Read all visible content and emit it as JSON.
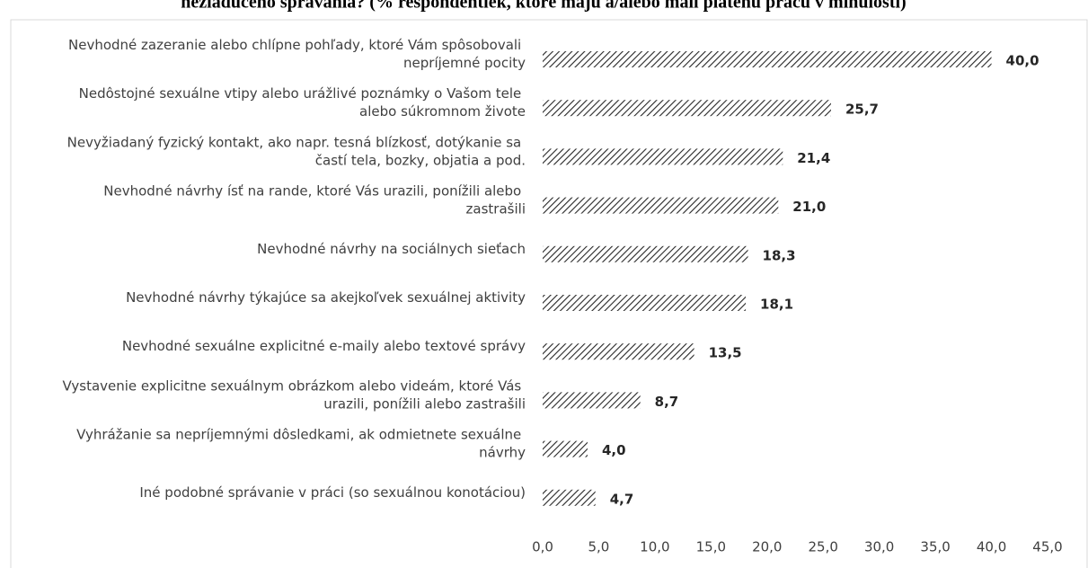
{
  "chart_data": {
    "type": "hbar",
    "title": "nežiaduceho správania? (% respondentiek, ktoré majú a/alebo mali platenú prácu v minulosti)",
    "categories": [
      "Nevhodné zazeranie alebo chlípne pohľady, ktoré Vám spôsobovali nepríjemné pocity",
      "Nedôstojné sexuálne vtipy alebo urážlivé poznámky o Vašom tele alebo súkromnom živote",
      "Nevyžiadaný fyzický kontakt, ako napr. tesná blízkosť, dotýkanie sa častí tela, bozky, objatia a pod.",
      "Nevhodné návrhy ísť na rande, ktoré Vás urazili, ponížili alebo zastrašili",
      "Nevhodné návrhy na sociálnych sieťach",
      "Nevhodné návrhy týkajúce sa akejkoľvek sexuálnej aktivity",
      "Nevhodné sexuálne explicitné e-maily alebo textové správy",
      "Vystavenie explicitne sexuálnym obrázkom alebo videám, ktoré Vás urazili, ponížili alebo zastrašili",
      "Vyhrážanie sa nepríjemnými dôsledkami, ak odmietnete sexuálne návrhy",
      "Iné podobné správanie v práci (so sexuálnou konotáciou)"
    ],
    "values": [
      40.0,
      25.7,
      21.4,
      21.0,
      18.3,
      18.1,
      13.5,
      8.7,
      4.0,
      4.7
    ],
    "value_labels": [
      "40,0",
      "25,7",
      "21,4",
      "21,0",
      "18,3",
      "18,1",
      "13,5",
      "8,7",
      "4,0",
      "4,7"
    ],
    "color": "#262626",
    "pattern": "diagonal-hatch",
    "xlim": [
      0,
      45
    ],
    "xticks": [
      {
        "value": 0,
        "label": "0,0"
      },
      {
        "value": 5,
        "label": "5,0"
      },
      {
        "value": 10,
        "label": "10,0"
      },
      {
        "value": 15,
        "label": "15,0"
      },
      {
        "value": 20,
        "label": "20,0"
      },
      {
        "value": 25,
        "label": "25,0"
      },
      {
        "value": 30,
        "label": "30,0"
      },
      {
        "value": 35,
        "label": "35,0"
      },
      {
        "value": 40,
        "label": "40,0"
      },
      {
        "value": 45,
        "label": "45,0"
      }
    ],
    "grid": false
  }
}
